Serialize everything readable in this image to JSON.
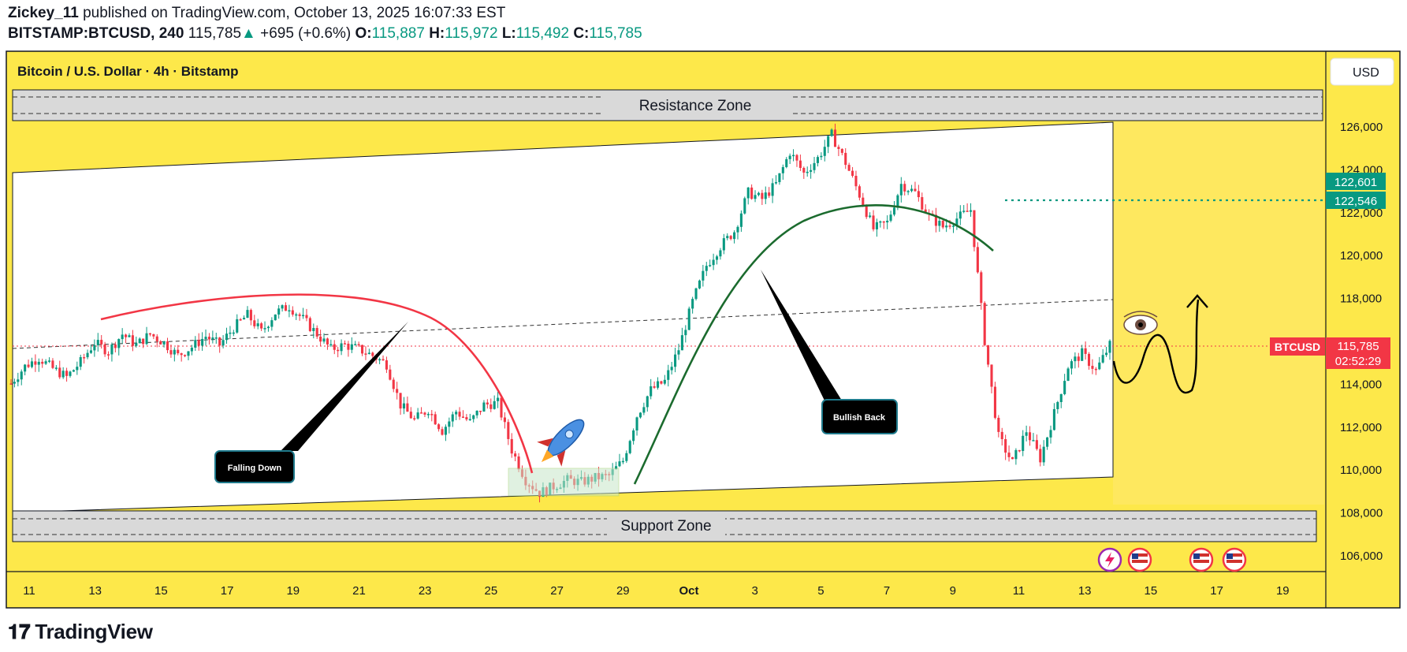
{
  "header": {
    "author": "Zickey_11",
    "published_text": "published on TradingView.com, October 13, 2025 16:07:33 EST",
    "symbol": "BITSTAMP:BTCUSD, 240",
    "last_price": "115,785",
    "change_arrow": "▲",
    "change": "+695 (+0.6%)",
    "o_label": "O:",
    "o_value": "115,887",
    "h_label": "H:",
    "h_value": "115,972",
    "l_label": "L:",
    "l_value": "115,492",
    "c_label": "C:",
    "c_value": "115,785"
  },
  "chart": {
    "title": "Bitcoin / U.S. Dollar · 4h · Bitstamp",
    "currency_button": "USD",
    "resistance_label": "Resistance Zone",
    "support_label": "Support Zone",
    "callout_falling": "Falling Down",
    "callout_bullish": "Bullish Back",
    "price_tag_symbol": "BTCUSD",
    "price_tag_value": "115,785",
    "price_tag_countdown": "02:52:29",
    "level_tag_1": "122,601",
    "level_tag_2": "122,546",
    "colors": {
      "background_yellow": "#fde84a",
      "up": "#089981",
      "down": "#f23645",
      "zone_grey": "#d9d9d9",
      "arc_red": "#f23645",
      "arc_green": "#1b6b2e"
    }
  },
  "chart_data": {
    "type": "candlestick",
    "symbol": "BITSTAMP:BTCUSD",
    "timeframe": "240",
    "y_ticks": [
      106000,
      108000,
      110000,
      112000,
      114000,
      116000,
      118000,
      120000,
      122000,
      124000,
      126000
    ],
    "x_ticks": [
      "11",
      "13",
      "15",
      "17",
      "19",
      "21",
      "23",
      "25",
      "27",
      "29",
      "Oct",
      "3",
      "5",
      "7",
      "9",
      "11",
      "13",
      "15",
      "17",
      "19"
    ],
    "current_price": 115785,
    "level_lines": [
      122601,
      122546
    ],
    "resistance_zone": [
      126000,
      127600
    ],
    "support_zone": [
      106600,
      107900
    ],
    "close_path": [
      [
        0,
        114000
      ],
      [
        1,
        114800
      ],
      [
        2,
        115200
      ],
      [
        3,
        114700
      ],
      [
        4,
        114300
      ],
      [
        5,
        115000
      ],
      [
        6,
        115900
      ],
      [
        7,
        115500
      ],
      [
        8,
        116300
      ],
      [
        9,
        115800
      ],
      [
        10,
        116300
      ],
      [
        11,
        115900
      ],
      [
        12,
        115300
      ],
      [
        13,
        115700
      ],
      [
        14,
        116200
      ],
      [
        15,
        115800
      ],
      [
        16,
        116600
      ],
      [
        17,
        117200
      ],
      [
        18,
        116400
      ],
      [
        19,
        117300
      ],
      [
        20,
        117600
      ],
      [
        21,
        117000
      ],
      [
        22,
        116300
      ],
      [
        23,
        115600
      ],
      [
        24,
        115800
      ],
      [
        25,
        115600
      ],
      [
        26,
        115300
      ],
      [
        27,
        114900
      ],
      [
        28,
        113000
      ],
      [
        29,
        112300
      ],
      [
        30,
        112800
      ],
      [
        31,
        111800
      ],
      [
        32,
        112700
      ],
      [
        33,
        112200
      ],
      [
        34,
        113000
      ],
      [
        35,
        113100
      ],
      [
        36,
        110900
      ],
      [
        37,
        109500
      ],
      [
        38,
        108900
      ],
      [
        39,
        109200
      ],
      [
        40,
        109500
      ],
      [
        41,
        109400
      ],
      [
        42,
        109600
      ],
      [
        43,
        109700
      ],
      [
        44,
        110400
      ],
      [
        45,
        112500
      ],
      [
        46,
        113700
      ],
      [
        47,
        114100
      ],
      [
        48,
        115600
      ],
      [
        49,
        117800
      ],
      [
        50,
        119500
      ],
      [
        51,
        120400
      ],
      [
        52,
        121100
      ],
      [
        53,
        122900
      ],
      [
        54,
        122600
      ],
      [
        55,
        123300
      ],
      [
        56,
        124800
      ],
      [
        57,
        123800
      ],
      [
        58,
        124500
      ],
      [
        59,
        125600
      ],
      [
        60,
        124300
      ],
      [
        61,
        122800
      ],
      [
        62,
        121200
      ],
      [
        63,
        121500
      ],
      [
        64,
        123300
      ],
      [
        65,
        122900
      ],
      [
        66,
        121800
      ],
      [
        67,
        121300
      ],
      [
        68,
        121700
      ],
      [
        69,
        122100
      ],
      [
        70,
        116000
      ],
      [
        71,
        111500
      ],
      [
        72,
        110300
      ],
      [
        73,
        111800
      ],
      [
        74,
        110500
      ],
      [
        75,
        112600
      ],
      [
        76,
        114800
      ],
      [
        77,
        115400
      ],
      [
        78,
        114600
      ],
      [
        79,
        115785
      ]
    ]
  }
}
